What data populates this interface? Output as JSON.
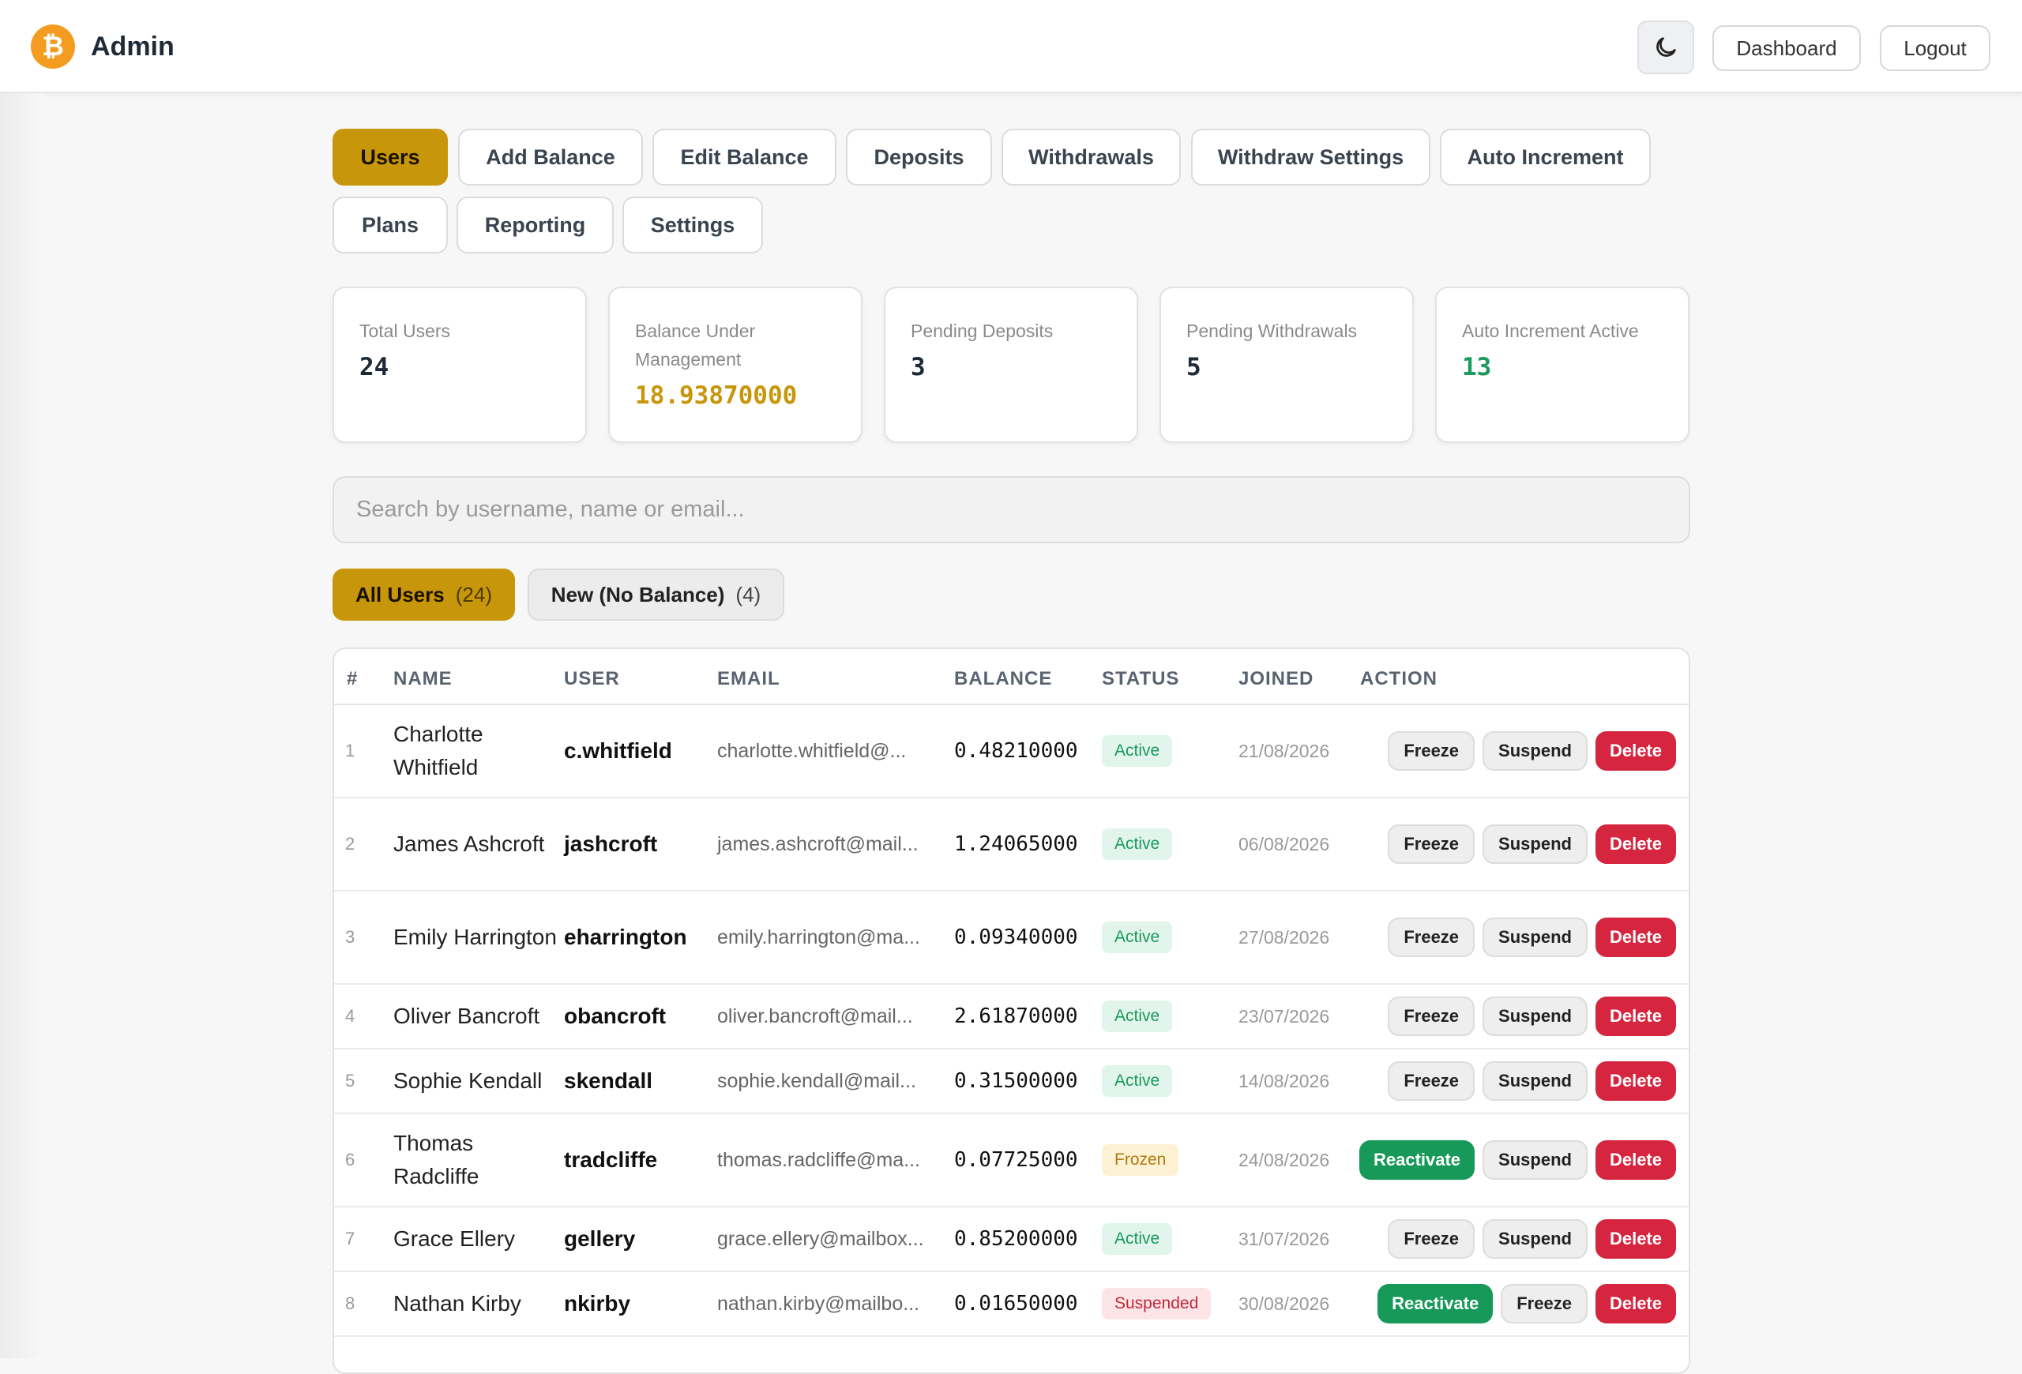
{
  "header": {
    "logo_glyph": "₿",
    "title": "Admin",
    "dashboard_label": "Dashboard",
    "logout_label": "Logout"
  },
  "tabs": [
    {
      "label": "Users",
      "active": true
    },
    {
      "label": "Add Balance"
    },
    {
      "label": "Edit Balance"
    },
    {
      "label": "Deposits"
    },
    {
      "label": "Withdrawals"
    },
    {
      "label": "Withdraw Settings"
    },
    {
      "label": "Auto Increment"
    },
    {
      "label": "Plans"
    },
    {
      "label": "Reporting"
    },
    {
      "label": "Settings"
    }
  ],
  "stats": [
    {
      "label": "Total Users",
      "value": "24"
    },
    {
      "label": "Balance Under Management",
      "value": "18.93870000"
    },
    {
      "label": "Pending Deposits",
      "value": "3"
    },
    {
      "label": "Pending Withdrawals",
      "value": "5"
    },
    {
      "label": "Auto Increment Active",
      "value": "13"
    }
  ],
  "search": {
    "placeholder": "Search by username, name or email..."
  },
  "filters": [
    {
      "label": "All Users",
      "count": "(24)",
      "active": true
    },
    {
      "label": "New (No Balance)",
      "count": "(4)"
    }
  ],
  "table": {
    "headers": [
      "#",
      "NAME",
      "USER",
      "EMAIL",
      "BALANCE",
      "STATUS",
      "JOINED",
      "ACTION"
    ],
    "rows": [
      {
        "num": "1",
        "name": "Charlotte Whitfield",
        "user": "c.whitfield",
        "email": "charlotte.whitfield@...",
        "balance": "0.48210000",
        "status": "Active",
        "joined": "21/08/2026",
        "actions": [
          "Freeze",
          "Suspend",
          "Delete"
        ]
      },
      {
        "num": "2",
        "name": "James Ashcroft",
        "user": "jashcroft",
        "email": "james.ashcroft@mail...",
        "balance": "1.24065000",
        "status": "Active",
        "joined": "06/08/2026",
        "actions": [
          "Freeze",
          "Suspend",
          "Delete"
        ]
      },
      {
        "num": "3",
        "name": "Emily Harrington",
        "user": "eharrington",
        "email": "emily.harrington@ma...",
        "balance": "0.09340000",
        "status": "Active",
        "joined": "27/08/2026",
        "actions": [
          "Freeze",
          "Suspend",
          "Delete"
        ]
      },
      {
        "num": "4",
        "name": "Oliver Bancroft",
        "user": "obancroft",
        "email": "oliver.bancroft@mail...",
        "balance": "2.61870000",
        "status": "Active",
        "joined": "23/07/2026",
        "actions": [
          "Freeze",
          "Suspend",
          "Delete"
        ]
      },
      {
        "num": "5",
        "name": "Sophie Kendall",
        "user": "skendall",
        "email": "sophie.kendall@mail...",
        "balance": "0.31500000",
        "status": "Active",
        "joined": "14/08/2026",
        "actions": [
          "Freeze",
          "Suspend",
          "Delete"
        ]
      },
      {
        "num": "6",
        "name": "Thomas Radcliffe",
        "user": "tradcliffe",
        "email": "thomas.radcliffe@ma...",
        "balance": "0.07725000",
        "status": "Frozen",
        "joined": "24/08/2026",
        "actions": [
          "Reactivate",
          "Suspend",
          "Delete"
        ]
      },
      {
        "num": "7",
        "name": "Grace Ellery",
        "user": "gellery",
        "email": "grace.ellery@mailbox...",
        "balance": "0.85200000",
        "status": "Active",
        "joined": "31/07/2026",
        "actions": [
          "Freeze",
          "Suspend",
          "Delete"
        ]
      },
      {
        "num": "8",
        "name": "Nathan Kirby",
        "user": "nkirby",
        "email": "nathan.kirby@mailbo...",
        "balance": "0.01650000",
        "status": "Suspended",
        "joined": "30/08/2026",
        "actions": [
          "Reactivate",
          "Freeze",
          "Delete"
        ]
      }
    ]
  },
  "colors": {
    "accent": "#c8960a",
    "danger": "#d6263f",
    "success": "#17995a",
    "brand": "#f39c1f"
  },
  "icons": {
    "logo": "bitcoin-icon",
    "theme": "moon-icon"
  }
}
